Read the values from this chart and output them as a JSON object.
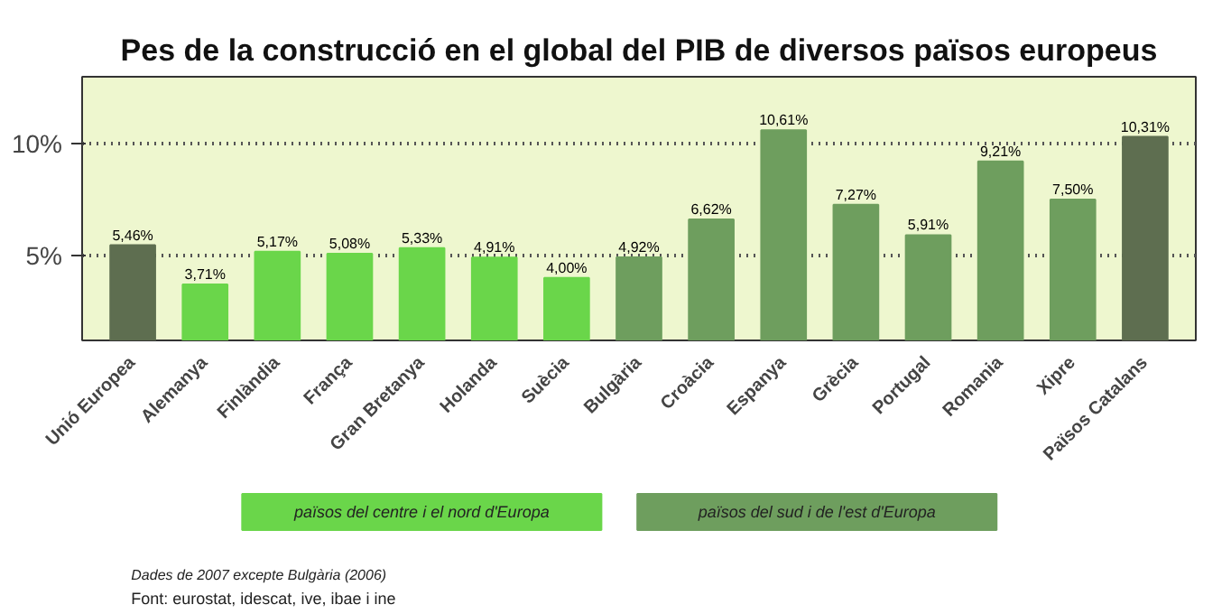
{
  "chart_data": {
    "type": "bar",
    "title": "Pes de la construcció en el global del PIB de diversos països europeus",
    "categories": [
      "Unió Europea",
      "Alemanya",
      "Finlàndia",
      "França",
      "Gran Bretanya",
      "Holanda",
      "Suècia",
      "Bulgària",
      "Croàcia",
      "Espanya",
      "Grècia",
      "Portugal",
      "Romania",
      "Xipre",
      "Països Catalans"
    ],
    "series": [
      {
        "color": "#5e6e50",
        "values": [
          5.46,
          null,
          null,
          null,
          null,
          null,
          null,
          null,
          null,
          null,
          null,
          null,
          null,
          null,
          10.31
        ],
        "value_labels": [
          "5,46%",
          null,
          null,
          null,
          null,
          null,
          null,
          null,
          null,
          null,
          null,
          null,
          null,
          null,
          "10,31%"
        ]
      },
      {
        "name": "països del centre i el nord d'Europa",
        "color": "#6ad64a",
        "values": [
          null,
          3.71,
          5.17,
          5.08,
          5.33,
          4.91,
          4.0,
          null,
          null,
          null,
          null,
          null,
          null,
          null,
          null
        ],
        "value_labels": [
          null,
          "3,71%",
          "5,17%",
          "5,08%",
          "5,33%",
          "4,91%",
          "4,00%",
          null,
          null,
          null,
          null,
          null,
          null,
          null,
          null
        ]
      },
      {
        "name": "països del sud i de l'est d'Europa",
        "color": "#6e9e5e",
        "values": [
          null,
          null,
          null,
          null,
          null,
          null,
          null,
          4.92,
          6.62,
          10.61,
          7.27,
          5.91,
          9.21,
          7.5,
          null
        ],
        "value_labels": [
          null,
          null,
          null,
          null,
          null,
          null,
          null,
          "4,92%",
          "6,62%",
          "10,61%",
          "7,27%",
          "5,91%",
          "9,21%",
          "7,50%",
          null
        ]
      }
    ],
    "ylim": [
      1.2,
      13
    ],
    "yticks": [
      {
        "value": 5,
        "label": "5%"
      },
      {
        "value": 10,
        "label": "10%"
      }
    ],
    "grid": "y",
    "legend": "bottom",
    "annotations": [
      "Dades de 2007 excepte Bulgària (2006)",
      "Font: eurostat, idescat, ive, ibae i ine"
    ]
  }
}
